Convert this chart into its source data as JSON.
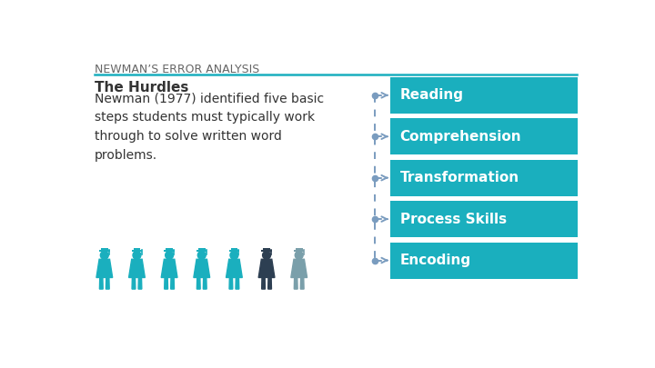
{
  "title": "NEWMAN’S ERROR ANALYSIS",
  "subtitle_bold": "The Hurdles",
  "subtitle_text": "Newman (1977) identified five basic\nsteps students must typically work\nthrough to solve written word\nproblems.",
  "steps": [
    "Reading",
    "Comprehension",
    "Transformation",
    "Process Skills",
    "Encoding"
  ],
  "box_color": "#1AAFBE",
  "box_text_color": "#ffffff",
  "title_color": "#666666",
  "subtitle_color": "#333333",
  "background_color": "#ffffff",
  "figure_colors": [
    "#1AAFBE",
    "#1AAFBE",
    "#1AAFBE",
    "#1AAFBE",
    "#1AAFBE",
    "#2d3f52",
    "#7a9faa"
  ],
  "title_line_color": "#1AAFBE",
  "dashed_line_color": "#7a9cbf"
}
